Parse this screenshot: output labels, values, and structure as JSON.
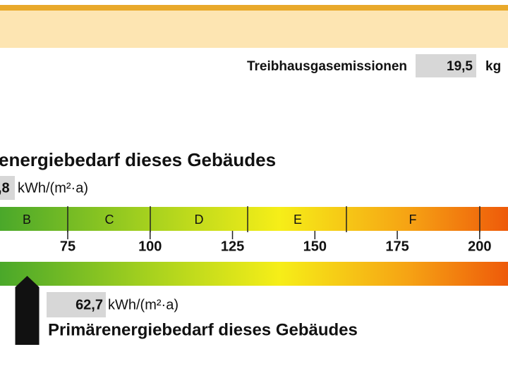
{
  "header": {
    "emission_label": "Treibhausgasemissionen",
    "emission_value": "19,5",
    "emission_unit": "kg"
  },
  "end_energy": {
    "title": "energiebedarf dieses Gebäudes",
    "value_label": ",8",
    "unit": "kWh/(m²·a)"
  },
  "scale": {
    "classes": [
      "B",
      "C",
      "D",
      "E",
      "F"
    ],
    "xlim": [
      54.45,
      208.6
    ],
    "ticks": [
      75,
      100,
      125,
      150,
      175,
      200
    ]
  },
  "primary_energy": {
    "value": 62.7,
    "value_label": "62,7",
    "unit": "kWh/(m²·a)",
    "title": "Primärenergiebedarf dieses Gebäudes"
  }
}
